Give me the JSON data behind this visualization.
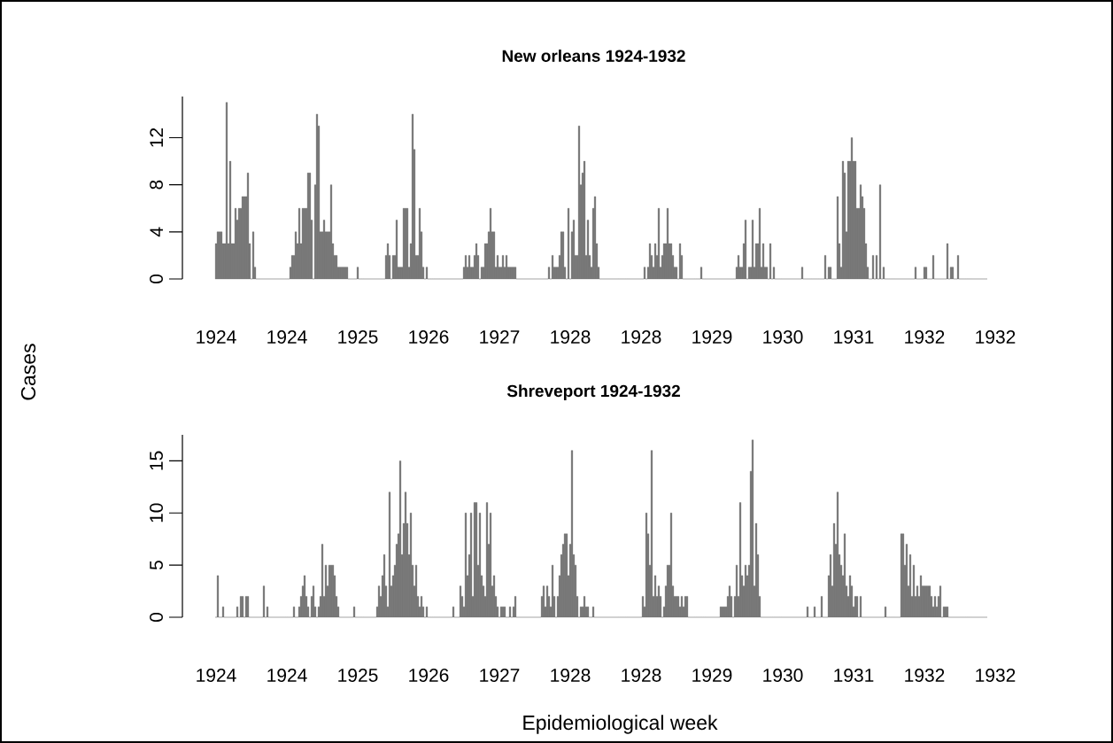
{
  "chart_data": [
    {
      "type": "bar",
      "title": "New orleans 1924-1932",
      "ylabel": "Cases",
      "color": "#666666",
      "ylim": [
        0,
        15.5
      ],
      "yticks": [
        0,
        4,
        8,
        12
      ],
      "categories": [
        "1924",
        null,
        null,
        null,
        null,
        null,
        null,
        null,
        null,
        null,
        null,
        null,
        null,
        null,
        null,
        null,
        null,
        null,
        null,
        null,
        null,
        null,
        null,
        null,
        null,
        null,
        null,
        null,
        null,
        null,
        null,
        null,
        null,
        null,
        null,
        null,
        null,
        null,
        null,
        null,
        "1924",
        null,
        null,
        null,
        null,
        null,
        null,
        null,
        null,
        null,
        null,
        null,
        null,
        null,
        null,
        null,
        null,
        null,
        null,
        null,
        null,
        null,
        null,
        null,
        null,
        null,
        null,
        null,
        null,
        null,
        null,
        null,
        null,
        null,
        null,
        null,
        null,
        null,
        null,
        null,
        "1925",
        null,
        null,
        null,
        null,
        null,
        null,
        null,
        null,
        null,
        null,
        null,
        null,
        null,
        null,
        null,
        null,
        null,
        null,
        null,
        null,
        null,
        null,
        null,
        null,
        null,
        null,
        null,
        null,
        null,
        null,
        null,
        null,
        null,
        null,
        null,
        null,
        null,
        null,
        null,
        "1926",
        null,
        null,
        null,
        null,
        null,
        null,
        null,
        null,
        null,
        null,
        null,
        null,
        null,
        null,
        null,
        null,
        null,
        null,
        null,
        null,
        null,
        null,
        null,
        null,
        null,
        null,
        null,
        null,
        null,
        null,
        null,
        null,
        null,
        null,
        null,
        null,
        null,
        null,
        null,
        "1927",
        null,
        null,
        null,
        null,
        null,
        null,
        null,
        null,
        null,
        null,
        null,
        null,
        null,
        null,
        null,
        null,
        null,
        null,
        null,
        null,
        null,
        null,
        null,
        null,
        null,
        null,
        null,
        null,
        null,
        null,
        null,
        null,
        null,
        null,
        null,
        null,
        null,
        null,
        null,
        "1928",
        null,
        null,
        null,
        null,
        null,
        null,
        null,
        null,
        null,
        null,
        null,
        null,
        null,
        null,
        null,
        null,
        null,
        null,
        null,
        null,
        null,
        null,
        null,
        null,
        null,
        null,
        null,
        null,
        null,
        null,
        null,
        null,
        null,
        null,
        null,
        null,
        null,
        null,
        null,
        "1928",
        null,
        null,
        null,
        null,
        null,
        null,
        null,
        null,
        null,
        null,
        null,
        null,
        null,
        null,
        null,
        null,
        null,
        null,
        null,
        null,
        null,
        null,
        null,
        null,
        null,
        null,
        null,
        null,
        null,
        null,
        null,
        null,
        null,
        null,
        null,
        null,
        null,
        null,
        null,
        "1929",
        null,
        null,
        null,
        null,
        null,
        null,
        null,
        null,
        null,
        null,
        null,
        null,
        null,
        null,
        null,
        null,
        null,
        null,
        null,
        null,
        null,
        null,
        null,
        null,
        null,
        null,
        null,
        null,
        null,
        null,
        null,
        null,
        null,
        null,
        null,
        null,
        null,
        null,
        null,
        "1930",
        null,
        null,
        null,
        null,
        null,
        null,
        null,
        null,
        null,
        null,
        null,
        null,
        null,
        null,
        null,
        null,
        null,
        null,
        null,
        null,
        null,
        null,
        null,
        null,
        null,
        null,
        null,
        null,
        null,
        null,
        null,
        null,
        null,
        null,
        null,
        null,
        null,
        null,
        null,
        "1931",
        null,
        null,
        null,
        null,
        null,
        null,
        null,
        null,
        null,
        null,
        null,
        null,
        null,
        null,
        null,
        null,
        null,
        null,
        null,
        null,
        null,
        null,
        null,
        null,
        null,
        null,
        null,
        null,
        null,
        null,
        null,
        null,
        null,
        null,
        null,
        null,
        null,
        null,
        null,
        "1932",
        null,
        null,
        null,
        null,
        null,
        null,
        null,
        null,
        null,
        null,
        null,
        null,
        null,
        null,
        null,
        null,
        null,
        null,
        null,
        null,
        null,
        null,
        null,
        null,
        null,
        null,
        null,
        null,
        null,
        null,
        null,
        null,
        null,
        null,
        null,
        null,
        null,
        null,
        null,
        "1932"
      ],
      "values": [
        3,
        4,
        4,
        4,
        3,
        3,
        15,
        3,
        10,
        3,
        3,
        6,
        5,
        6,
        6,
        7,
        7,
        7,
        9,
        3,
        0,
        4,
        1,
        0,
        0,
        0,
        0,
        0,
        0,
        0,
        0,
        0,
        0,
        0,
        0,
        0,
        0,
        0,
        0,
        0,
        0,
        0,
        1,
        2,
        2,
        4,
        3,
        6,
        3,
        6,
        6,
        6,
        9,
        9,
        5,
        0,
        8,
        14,
        13,
        4,
        4,
        5,
        4,
        4,
        4,
        8,
        3,
        2,
        2,
        1,
        1,
        1,
        1,
        1,
        1,
        0,
        0,
        0,
        0,
        0,
        1,
        0,
        0,
        0,
        0,
        0,
        0,
        0,
        0,
        0,
        0,
        0,
        0,
        0,
        0,
        0,
        2,
        3,
        2,
        0,
        2,
        2,
        5,
        1,
        1,
        1,
        6,
        6,
        6,
        1,
        3,
        14,
        11,
        2,
        2,
        6,
        4,
        1,
        0,
        1,
        0,
        0,
        0,
        0,
        0,
        0,
        0,
        0,
        0,
        0,
        0,
        0,
        0,
        0,
        0,
        0,
        0,
        0,
        0,
        0,
        1,
        2,
        1,
        2,
        1,
        1,
        2,
        3,
        2,
        0,
        1,
        1,
        3,
        3,
        4,
        6,
        4,
        4,
        1,
        2,
        1,
        1,
        2,
        1,
        2,
        1,
        1,
        1,
        1,
        1,
        0,
        0,
        0,
        0,
        0,
        0,
        0,
        0,
        0,
        0,
        0,
        0,
        0,
        0,
        0,
        0,
        0,
        0,
        1,
        0,
        2,
        1,
        1,
        1,
        2,
        4,
        4,
        1,
        0,
        6,
        0,
        4,
        5,
        2,
        2,
        13,
        8,
        9,
        10,
        2,
        5,
        2,
        1,
        6,
        7,
        3,
        1,
        0,
        0,
        0,
        0,
        0,
        0,
        0,
        0,
        0,
        0,
        0,
        0,
        0,
        0,
        0,
        0,
        0,
        0,
        0,
        0,
        0,
        0,
        0,
        0,
        0,
        1,
        0,
        1,
        3,
        2,
        1,
        3,
        2,
        6,
        1,
        2,
        3,
        3,
        6,
        3,
        3,
        2,
        1,
        1,
        0,
        3,
        2,
        0,
        0,
        0,
        0,
        0,
        0,
        0,
        0,
        0,
        0,
        1,
        0,
        0,
        0,
        0,
        0,
        0,
        0,
        0,
        0,
        0,
        0,
        0,
        0,
        0,
        0,
        0,
        0,
        0,
        0,
        1,
        2,
        1,
        1,
        3,
        5,
        0,
        1,
        1,
        5,
        1,
        3,
        3,
        6,
        1,
        3,
        1,
        1,
        0,
        3,
        0,
        1,
        0,
        0,
        0,
        0,
        0,
        0,
        0,
        0,
        0,
        0,
        0,
        0,
        0,
        0,
        0,
        1,
        0,
        0,
        0,
        0,
        0,
        0,
        0,
        0,
        0,
        0,
        0,
        0,
        2,
        0,
        1,
        1,
        0,
        0,
        0,
        7,
        3,
        1,
        10,
        9,
        4,
        10,
        10,
        12,
        10,
        10,
        6,
        6,
        8,
        7,
        6,
        3,
        1,
        0,
        0,
        2,
        0,
        2,
        0,
        8,
        0,
        1,
        0,
        0,
        0,
        0,
        0,
        0,
        0,
        0,
        0,
        0,
        0,
        0,
        0,
        0,
        0,
        0,
        0,
        1,
        0,
        0,
        0,
        0,
        1,
        1,
        0,
        0,
        0,
        2,
        0,
        0,
        0,
        0,
        0,
        0,
        0,
        3,
        0,
        1,
        1,
        0,
        0,
        2,
        0,
        0,
        0,
        0,
        0,
        0,
        0,
        0,
        0,
        0,
        0,
        0,
        0,
        0,
        0,
        0,
        null,
        null,
        null,
        null,
        null
      ]
    },
    {
      "type": "bar",
      "title": "Shreveport 1924-1932",
      "xlabel": "Epidemiological week",
      "color": "#666666",
      "ylim": [
        0,
        17.5
      ],
      "yticks": [
        0,
        5,
        10,
        15
      ],
      "categories": [
        "1924",
        null,
        null,
        null,
        null,
        null,
        null,
        null,
        null,
        null,
        null,
        null,
        null,
        null,
        null,
        null,
        null,
        null,
        null,
        null,
        null,
        null,
        null,
        null,
        null,
        null,
        null,
        null,
        null,
        null,
        null,
        null,
        null,
        null,
        null,
        null,
        null,
        null,
        null,
        null,
        "1924",
        null,
        null,
        null,
        null,
        null,
        null,
        null,
        null,
        null,
        null,
        null,
        null,
        null,
        null,
        null,
        null,
        null,
        null,
        null,
        null,
        null,
        null,
        null,
        null,
        null,
        null,
        null,
        null,
        null,
        null,
        null,
        null,
        null,
        null,
        null,
        null,
        null,
        null,
        null,
        "1925",
        null,
        null,
        null,
        null,
        null,
        null,
        null,
        null,
        null,
        null,
        null,
        null,
        null,
        null,
        null,
        null,
        null,
        null,
        null,
        null,
        null,
        null,
        null,
        null,
        null,
        null,
        null,
        null,
        null,
        null,
        null,
        null,
        null,
        null,
        null,
        null,
        null,
        null,
        null,
        "1926",
        null,
        null,
        null,
        null,
        null,
        null,
        null,
        null,
        null,
        null,
        null,
        null,
        null,
        null,
        null,
        null,
        null,
        null,
        null,
        null,
        null,
        null,
        null,
        null,
        null,
        null,
        null,
        null,
        null,
        null,
        null,
        null,
        null,
        null,
        null,
        null,
        null,
        null,
        null,
        "1927",
        null,
        null,
        null,
        null,
        null,
        null,
        null,
        null,
        null,
        null,
        null,
        null,
        null,
        null,
        null,
        null,
        null,
        null,
        null,
        null,
        null,
        null,
        null,
        null,
        null,
        null,
        null,
        null,
        null,
        null,
        null,
        null,
        null,
        null,
        null,
        null,
        null,
        null,
        null,
        "1928",
        null,
        null,
        null,
        null,
        null,
        null,
        null,
        null,
        null,
        null,
        null,
        null,
        null,
        null,
        null,
        null,
        null,
        null,
        null,
        null,
        null,
        null,
        null,
        null,
        null,
        null,
        null,
        null,
        null,
        null,
        null,
        null,
        null,
        null,
        null,
        null,
        null,
        null,
        null,
        "1928",
        null,
        null,
        null,
        null,
        null,
        null,
        null,
        null,
        null,
        null,
        null,
        null,
        null,
        null,
        null,
        null,
        null,
        null,
        null,
        null,
        null,
        null,
        null,
        null,
        null,
        null,
        null,
        null,
        null,
        null,
        null,
        null,
        null,
        null,
        null,
        null,
        null,
        null,
        null,
        "1929",
        null,
        null,
        null,
        null,
        null,
        null,
        null,
        null,
        null,
        null,
        null,
        null,
        null,
        null,
        null,
        null,
        null,
        null,
        null,
        null,
        null,
        null,
        null,
        null,
        null,
        null,
        null,
        null,
        null,
        null,
        null,
        null,
        null,
        null,
        null,
        null,
        null,
        null,
        null,
        "1930",
        null,
        null,
        null,
        null,
        null,
        null,
        null,
        null,
        null,
        null,
        null,
        null,
        null,
        null,
        null,
        null,
        null,
        null,
        null,
        null,
        null,
        null,
        null,
        null,
        null,
        null,
        null,
        null,
        null,
        null,
        null,
        null,
        null,
        null,
        null,
        null,
        null,
        null,
        null,
        "1931",
        null,
        null,
        null,
        null,
        null,
        null,
        null,
        null,
        null,
        null,
        null,
        null,
        null,
        null,
        null,
        null,
        null,
        null,
        null,
        null,
        null,
        null,
        null,
        null,
        null,
        null,
        null,
        null,
        null,
        null,
        null,
        null,
        null,
        null,
        null,
        null,
        null,
        null,
        null,
        "1932",
        null,
        null,
        null,
        null,
        null,
        null,
        null,
        null,
        null,
        null,
        null,
        null,
        null,
        null,
        null,
        null,
        null,
        null,
        null,
        null,
        null,
        null,
        null,
        null,
        null,
        null,
        null,
        null,
        null,
        null,
        null,
        null,
        null,
        null,
        null,
        null,
        null,
        null,
        null,
        "1932"
      ],
      "values": [
        0,
        4,
        0,
        0,
        1,
        0,
        0,
        0,
        0,
        0,
        0,
        0,
        1,
        0,
        2,
        2,
        0,
        2,
        2,
        0,
        0,
        0,
        0,
        0,
        0,
        0,
        0,
        3,
        0,
        1,
        0,
        0,
        0,
        0,
        0,
        0,
        0,
        0,
        0,
        0,
        0,
        0,
        0,
        0,
        1,
        0,
        0,
        1,
        2,
        3,
        4,
        2,
        1,
        0,
        2,
        3,
        1,
        0,
        1,
        2,
        7,
        2,
        5,
        3,
        5,
        5,
        5,
        4,
        2,
        1,
        0,
        0,
        0,
        0,
        0,
        0,
        0,
        0,
        1,
        0,
        0,
        0,
        0,
        0,
        0,
        0,
        0,
        0,
        0,
        0,
        0,
        1,
        3,
        2,
        4,
        6,
        3,
        1,
        12,
        3,
        4,
        5,
        7,
        8,
        15,
        6,
        9,
        12,
        9,
        6,
        10,
        5,
        3,
        5,
        2,
        1,
        2,
        1,
        0,
        1,
        0,
        0,
        0,
        0,
        0,
        0,
        0,
        0,
        0,
        0,
        0,
        0,
        0,
        0,
        1,
        0,
        0,
        0,
        3,
        2,
        1,
        10,
        4,
        6,
        10,
        2,
        11,
        11,
        5,
        10,
        4,
        3,
        2,
        11,
        7,
        10,
        3,
        4,
        2,
        1,
        0,
        1,
        1,
        1,
        0,
        0,
        1,
        0,
        1,
        2,
        0,
        0,
        0,
        0,
        0,
        0,
        0,
        0,
        0,
        0,
        0,
        0,
        0,
        0,
        2,
        3,
        1,
        3,
        2,
        1,
        5,
        2,
        0,
        2,
        4,
        6,
        7,
        8,
        8,
        4,
        7,
        16,
        6,
        5,
        2,
        0,
        1,
        1,
        2,
        1,
        1,
        0,
        0,
        1,
        0,
        0,
        0,
        0,
        0,
        0,
        0,
        0,
        0,
        0,
        0,
        0,
        0,
        0,
        0,
        0,
        0,
        0,
        0,
        0,
        0,
        0,
        0,
        0,
        0,
        0,
        0,
        2,
        1,
        10,
        8,
        5,
        16,
        2,
        4,
        2,
        3,
        2,
        0,
        1,
        3,
        5,
        5,
        10,
        3,
        2,
        2,
        2,
        1,
        2,
        1,
        2,
        2,
        0,
        0,
        0,
        0,
        0,
        0,
        0,
        0,
        0,
        0,
        0,
        0,
        0,
        0,
        0,
        0,
        0,
        0,
        1,
        1,
        1,
        1,
        2,
        3,
        2,
        0,
        2,
        5,
        2,
        11,
        4,
        3,
        5,
        4,
        5,
        14,
        17,
        3,
        9,
        6,
        2,
        0,
        0,
        0,
        0,
        0,
        0,
        0,
        0,
        0,
        0,
        0,
        0,
        0,
        0,
        0,
        0,
        0,
        0,
        0,
        0,
        0,
        0,
        0,
        0,
        0,
        0,
        1,
        0,
        0,
        0,
        1,
        0,
        0,
        0,
        2,
        0,
        0,
        0,
        4,
        6,
        3,
        9,
        7,
        12,
        6,
        5,
        4,
        8,
        3,
        2,
        4,
        3,
        1,
        2,
        2,
        0,
        2,
        0,
        0,
        0,
        0,
        0,
        0,
        0,
        0,
        0,
        0,
        0,
        0,
        0,
        1,
        0,
        0,
        0,
        0,
        0,
        0,
        0,
        0,
        8,
        8,
        5,
        7,
        3,
        6,
        2,
        5,
        2,
        3,
        2,
        4,
        3,
        3,
        3,
        3,
        3,
        2,
        1,
        2,
        1,
        2,
        3,
        0,
        1,
        1,
        1,
        0,
        0,
        0,
        0,
        0,
        0,
        0,
        0,
        0,
        0,
        0,
        0,
        0,
        0,
        0,
        0,
        0,
        0,
        0,
        0,
        0,
        0,
        null,
        null,
        null,
        null,
        null
      ]
    }
  ]
}
